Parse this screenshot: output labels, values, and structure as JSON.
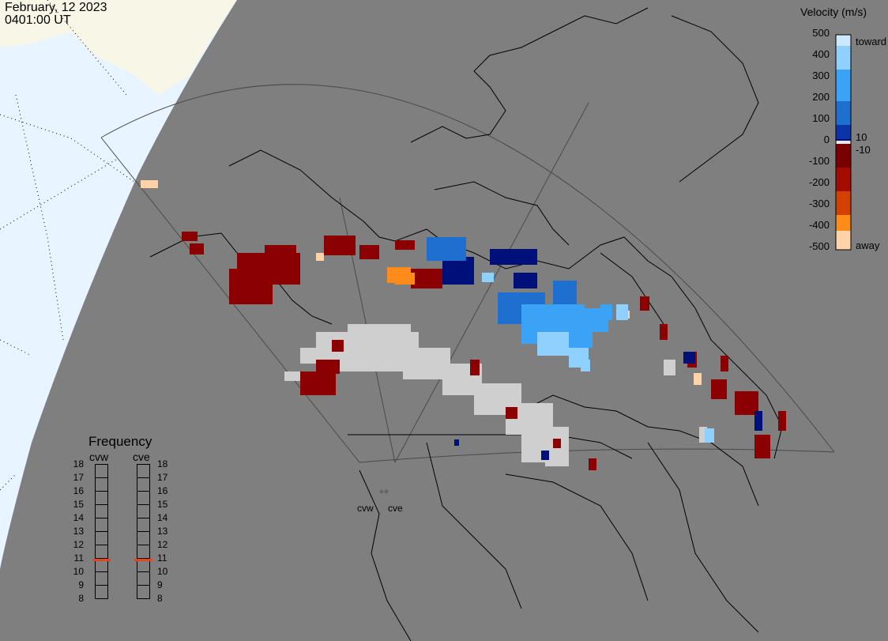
{
  "header": {
    "date": "February, 12 2023",
    "time": "0401:00 UT"
  },
  "colorbar": {
    "title": "Velocity (m/s)",
    "ticks": [
      "500",
      "400",
      "300",
      "200",
      "100",
      "0",
      "-100",
      "-200",
      "-300",
      "-400",
      "-500"
    ],
    "label_toward": "toward",
    "label_away": "away",
    "label_pos": "10",
    "label_neg": "-10",
    "colors": [
      "#cbe8ff",
      "#8fd0ff",
      "#3aa3f5",
      "#1e6fd0",
      "#0a35a8",
      "#00107a",
      "#e8e8e8",
      "#7a0000",
      "#a60b00",
      "#d34000",
      "#ff8c1a",
      "#ffd3a8"
    ]
  },
  "frequency": {
    "title": "Frequency",
    "radars": [
      "cvw",
      "cve"
    ],
    "scale": [
      "18",
      "17",
      "16",
      "15",
      "14",
      "13",
      "12",
      "11",
      "10",
      "9",
      "8"
    ],
    "cvw_mhz": 10.9,
    "cve_mhz": 10.9
  },
  "radar_labels": {
    "cvw": "cvw",
    "cve": "cve"
  },
  "map": {
    "ocean_color": "#e8f4ff",
    "day_land_color": "#f8f6e6",
    "night_color": "#7f7f7f",
    "ground_scatter_color": "#cfcfcf"
  }
}
